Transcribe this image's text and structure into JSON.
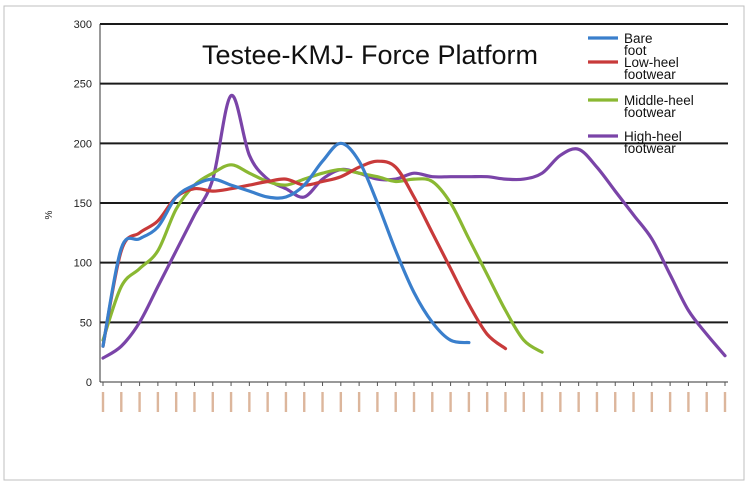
{
  "chart_data": {
    "type": "line",
    "title": "Testee-KMJ- Force Platform",
    "ylabel": "% ",
    "ylim": [
      0,
      300
    ],
    "yticks": [
      0,
      50,
      100,
      150,
      200,
      250,
      300
    ],
    "grid": true,
    "legend_position": "top-right",
    "x_count": 35,
    "series": [
      {
        "name": "Bare foot",
        "color": "#3a7fcc",
        "x": [
          1,
          2,
          3,
          4,
          5,
          6,
          7,
          8,
          9,
          10,
          11,
          12,
          13,
          14,
          15,
          16,
          17,
          18,
          19,
          20,
          21
        ],
        "values": [
          30,
          112,
          120,
          130,
          155,
          165,
          170,
          165,
          160,
          155,
          155,
          165,
          185,
          200,
          185,
          150,
          110,
          75,
          50,
          35,
          33
        ]
      },
      {
        "name": "Low-heel footwear",
        "color": "#c83a3a",
        "x": [
          1,
          2,
          3,
          4,
          5,
          6,
          7,
          8,
          9,
          10,
          11,
          12,
          13,
          14,
          15,
          16,
          17,
          18,
          19,
          20,
          21,
          22,
          23
        ],
        "values": [
          30,
          110,
          125,
          135,
          155,
          162,
          160,
          162,
          165,
          168,
          170,
          165,
          168,
          172,
          180,
          185,
          180,
          155,
          125,
          95,
          65,
          40,
          28
        ]
      },
      {
        "name": "Middle-heel footwear",
        "color": "#8ab832",
        "x": [
          1,
          2,
          3,
          4,
          5,
          6,
          7,
          8,
          9,
          10,
          11,
          12,
          13,
          14,
          15,
          16,
          17,
          18,
          19,
          20,
          21,
          22,
          23,
          24,
          25
        ],
        "values": [
          35,
          80,
          95,
          110,
          145,
          165,
          175,
          182,
          175,
          168,
          165,
          170,
          175,
          178,
          175,
          172,
          168,
          170,
          168,
          150,
          120,
          90,
          60,
          35,
          25
        ]
      },
      {
        "name": "High-heel footwear",
        "color": "#7a44a8",
        "x": [
          1,
          2,
          3,
          4,
          5,
          6,
          7,
          8,
          9,
          10,
          11,
          12,
          13,
          14,
          15,
          16,
          17,
          18,
          19,
          20,
          21,
          22,
          23,
          24,
          25,
          26,
          27,
          28,
          29,
          30,
          31,
          32,
          33,
          34,
          35
        ],
        "values": [
          20,
          30,
          50,
          80,
          110,
          140,
          170,
          240,
          190,
          170,
          162,
          155,
          170,
          178,
          175,
          170,
          170,
          175,
          172,
          172,
          172,
          172,
          170,
          170,
          175,
          190,
          195,
          180,
          160,
          140,
          120,
          90,
          60,
          40,
          22
        ]
      }
    ]
  }
}
